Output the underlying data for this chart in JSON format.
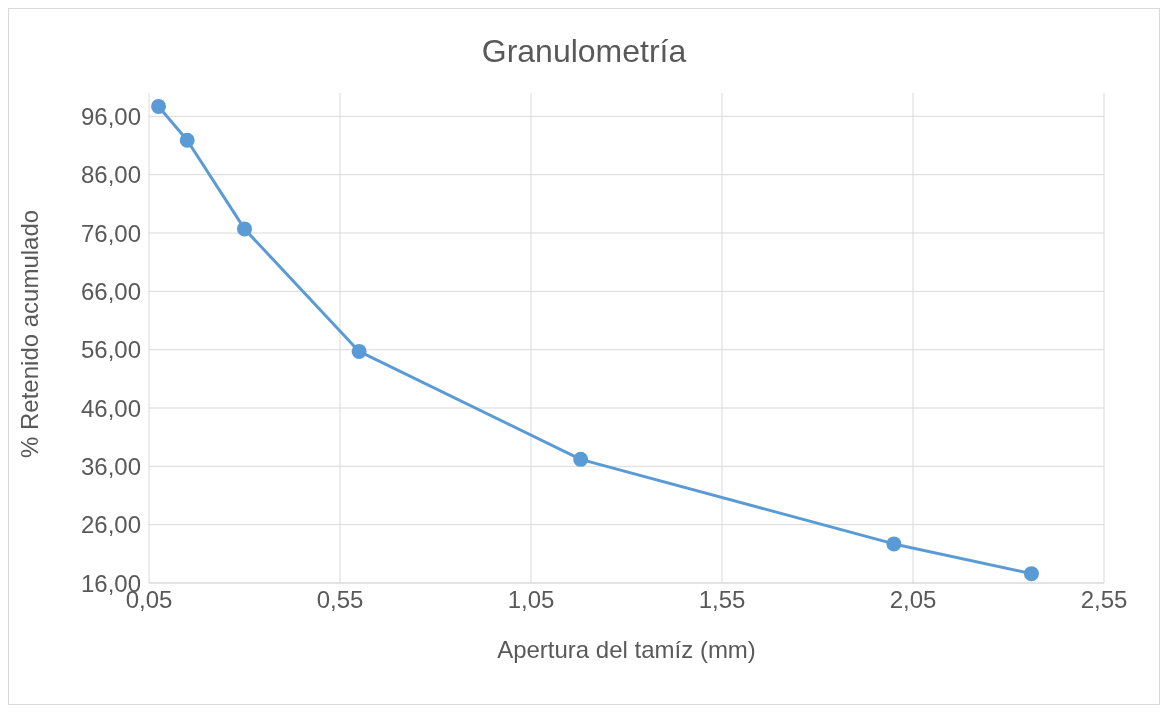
{
  "chart_data": {
    "type": "line",
    "title": "Granulometría",
    "xlabel": "Apertura del tamíz (mm)",
    "ylabel": "% Retenido acumulado",
    "x": [
      0.075,
      0.15,
      0.3,
      0.6,
      1.18,
      2.0,
      2.36
    ],
    "series": [
      {
        "color": "#5b9bd5",
        "values": [
          97.7,
          91.9,
          76.7,
          55.7,
          37.2,
          22.7,
          17.6
        ]
      }
    ],
    "xlim": [
      0.05,
      2.55
    ],
    "xticks": [
      {
        "value": 0.05,
        "label": "0,05"
      },
      {
        "value": 0.55,
        "label": "0,55"
      },
      {
        "value": 1.05,
        "label": "1,05"
      },
      {
        "value": 1.55,
        "label": "1,55"
      },
      {
        "value": 2.05,
        "label": "2,05"
      },
      {
        "value": 2.55,
        "label": "2,55"
      }
    ],
    "ylim": [
      16,
      100
    ],
    "yticks": [
      {
        "value": 16,
        "label": "16,00"
      },
      {
        "value": 26,
        "label": "26,00"
      },
      {
        "value": 36,
        "label": "36,00"
      },
      {
        "value": 46,
        "label": "46,00"
      },
      {
        "value": 56,
        "label": "56,00"
      },
      {
        "value": 66,
        "label": "66,00"
      },
      {
        "value": 76,
        "label": "76,00"
      },
      {
        "value": 86,
        "label": "86,00"
      },
      {
        "value": 96,
        "label": "96,00"
      }
    ],
    "grid": true,
    "marker": "circle",
    "line_style": "solid"
  }
}
